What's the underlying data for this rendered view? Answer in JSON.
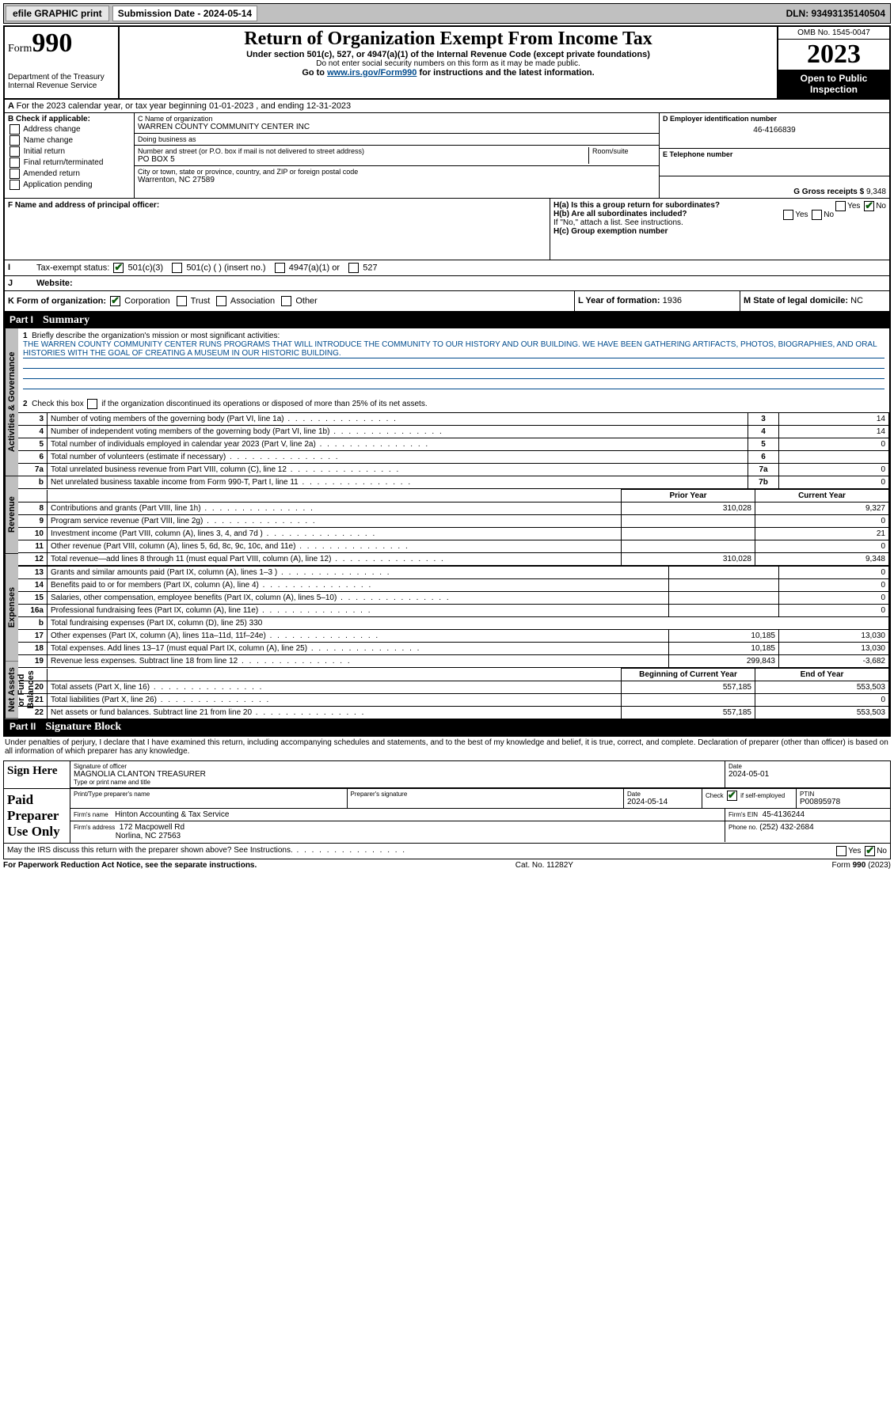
{
  "topbar": {
    "efile_label": "efile GRAPHIC print",
    "submission_label": "Submission Date - 2024-05-14",
    "dln": "DLN: 93493135140504"
  },
  "header": {
    "form_word": "Form",
    "form_number": "990",
    "dept": "Department of the Treasury",
    "irs": "Internal Revenue Service",
    "title": "Return of Organization Exempt From Income Tax",
    "subtitle": "Under section 501(c), 527, or 4947(a)(1) of the Internal Revenue Code (except private foundations)",
    "ssn_note": "Do not enter social security numbers on this form as it may be made public.",
    "goto": "Go to www.irs.gov/Form990 for instructions and the latest information.",
    "omb": "OMB No. 1545-0047",
    "year": "2023",
    "inspect": "Open to Public Inspection"
  },
  "line_a": "For the 2023 calendar year, or tax year beginning 01-01-2023   , and ending 12-31-2023",
  "section_b": {
    "label": "B Check if applicable:",
    "opts": [
      "Address change",
      "Name change",
      "Initial return",
      "Final return/terminated",
      "Amended return",
      "Application pending"
    ]
  },
  "section_c": {
    "name_label": "C Name of organization",
    "name": "WARREN COUNTY COMMUNITY CENTER INC",
    "dba_label": "Doing business as",
    "dba": "",
    "street_label": "Number and street (or P.O. box if mail is not delivered to street address)",
    "room_label": "Room/suite",
    "street": "PO BOX 5",
    "city_label": "City or town, state or province, country, and ZIP or foreign postal code",
    "city": "Warrenton, NC  27589"
  },
  "section_d": {
    "label": "D Employer identification number",
    "value": "46-4166839"
  },
  "section_e": {
    "label": "E Telephone number",
    "value": ""
  },
  "section_g": {
    "label": "G Gross receipts $",
    "value": "9,348"
  },
  "section_f": {
    "label": "F  Name and address of principal officer:",
    "value": ""
  },
  "section_h": {
    "a_label": "H(a)  Is this a group return for subordinates?",
    "a_yes": "Yes",
    "a_no": "No",
    "b_label": "H(b)  Are all subordinates included?",
    "b_note": "If \"No,\" attach a list. See instructions.",
    "c_label": "H(c)  Group exemption number"
  },
  "section_i": {
    "label": "Tax-exempt status:",
    "opts": [
      "501(c)(3)",
      "501(c) (  ) (insert no.)",
      "4947(a)(1) or",
      "527"
    ]
  },
  "section_j": {
    "label": "Website:",
    "value": ""
  },
  "section_k": {
    "label": "K Form of organization:",
    "opts": [
      "Corporation",
      "Trust",
      "Association",
      "Other"
    ]
  },
  "section_l": {
    "label": "L Year of formation:",
    "value": "1936"
  },
  "section_m": {
    "label": "M State of legal domicile:",
    "value": "NC"
  },
  "part1": {
    "header_part": "Part I",
    "header_title": "Summary",
    "tab_gov": "Activities & Governance",
    "tab_rev": "Revenue",
    "tab_exp": "Expenses",
    "tab_net": "Net Assets or Fund Balances",
    "line1_label": "Briefly describe the organization's mission or most significant activities:",
    "mission": "THE WARREN COUNTY COMMUNITY CENTER RUNS PROGRAMS THAT WILL INTRODUCE THE COMMUNITY TO OUR HISTORY AND OUR BUILDING. WE HAVE BEEN GATHERING ARTIFACTS, PHOTOS, BIOGRAPHIES, AND ORAL HISTORIES WITH THE GOAL OF CREATING A MUSEUM IN OUR HISTORIC BUILDING.",
    "line2": "Check this box       if the organization discontinued its operations or disposed of more than 25% of its net assets.",
    "rows_gov": [
      {
        "n": "3",
        "d": "Number of voting members of the governing body (Part VI, line 1a)",
        "b": "3",
        "v": "14"
      },
      {
        "n": "4",
        "d": "Number of independent voting members of the governing body (Part VI, line 1b)",
        "b": "4",
        "v": "14"
      },
      {
        "n": "5",
        "d": "Total number of individuals employed in calendar year 2023 (Part V, line 2a)",
        "b": "5",
        "v": "0"
      },
      {
        "n": "6",
        "d": "Total number of volunteers (estimate if necessary)",
        "b": "6",
        "v": ""
      },
      {
        "n": "7a",
        "d": "Total unrelated business revenue from Part VIII, column (C), line 12",
        "b": "7a",
        "v": "0"
      },
      {
        "n": "b",
        "d": "Net unrelated business taxable income from Form 990-T, Part I, line 11",
        "b": "7b",
        "v": "0"
      }
    ],
    "hdr_prior": "Prior Year",
    "hdr_current": "Current Year",
    "rows_rev": [
      {
        "n": "8",
        "d": "Contributions and grants (Part VIII, line 1h)",
        "p": "310,028",
        "c": "9,327"
      },
      {
        "n": "9",
        "d": "Program service revenue (Part VIII, line 2g)",
        "p": "",
        "c": "0"
      },
      {
        "n": "10",
        "d": "Investment income (Part VIII, column (A), lines 3, 4, and 7d )",
        "p": "",
        "c": "21"
      },
      {
        "n": "11",
        "d": "Other revenue (Part VIII, column (A), lines 5, 6d, 8c, 9c, 10c, and 11e)",
        "p": "",
        "c": "0"
      },
      {
        "n": "12",
        "d": "Total revenue—add lines 8 through 11 (must equal Part VIII, column (A), line 12)",
        "p": "310,028",
        "c": "9,348"
      }
    ],
    "rows_exp": [
      {
        "n": "13",
        "d": "Grants and similar amounts paid (Part IX, column (A), lines 1–3 )",
        "p": "",
        "c": "0"
      },
      {
        "n": "14",
        "d": "Benefits paid to or for members (Part IX, column (A), line 4)",
        "p": "",
        "c": "0"
      },
      {
        "n": "15",
        "d": "Salaries, other compensation, employee benefits (Part IX, column (A), lines 5–10)",
        "p": "",
        "c": "0"
      },
      {
        "n": "16a",
        "d": "Professional fundraising fees (Part IX, column (A), line 11e)",
        "p": "",
        "c": "0"
      },
      {
        "n": "b",
        "d": "Total fundraising expenses (Part IX, column (D), line 25) 330",
        "p": null,
        "c": null
      },
      {
        "n": "17",
        "d": "Other expenses (Part IX, column (A), lines 11a–11d, 11f–24e)",
        "p": "10,185",
        "c": "13,030"
      },
      {
        "n": "18",
        "d": "Total expenses. Add lines 13–17 (must equal Part IX, column (A), line 25)",
        "p": "10,185",
        "c": "13,030"
      },
      {
        "n": "19",
        "d": "Revenue less expenses. Subtract line 18 from line 12",
        "p": "299,843",
        "c": "-3,682"
      }
    ],
    "hdr_begin": "Beginning of Current Year",
    "hdr_end": "End of Year",
    "rows_net": [
      {
        "n": "20",
        "d": "Total assets (Part X, line 16)",
        "p": "557,185",
        "c": "553,503"
      },
      {
        "n": "21",
        "d": "Total liabilities (Part X, line 26)",
        "p": "",
        "c": "0"
      },
      {
        "n": "22",
        "d": "Net assets or fund balances. Subtract line 21 from line 20",
        "p": "557,185",
        "c": "553,503"
      }
    ]
  },
  "part2": {
    "header_part": "Part II",
    "header_title": "Signature Block",
    "perjury": "Under penalties of perjury, I declare that I have examined this return, including accompanying schedules and statements, and to the best of my knowledge and belief, it is true, correct, and complete. Declaration of preparer (other than officer) is based on all information of which preparer has any knowledge."
  },
  "sign": {
    "label": "Sign Here",
    "sig_label": "Signature of officer",
    "date_label": "Date",
    "date": "2024-05-01",
    "name": "MAGNOLIA CLANTON  TREASURER",
    "type_label": "Type or print name and title"
  },
  "preparer": {
    "label": "Paid Preparer Use Only",
    "print_label": "Print/Type preparer's name",
    "sig_label": "Preparer's signature",
    "date_label": "Date",
    "date": "2024-05-14",
    "check_label": "Check         if self-employed",
    "ptin_label": "PTIN",
    "ptin": "P00895978",
    "firm_name_label": "Firm's name",
    "firm_name": "Hinton Accounting & Tax Service",
    "firm_ein_label": "Firm's EIN",
    "firm_ein": "45-4136244",
    "firm_addr_label": "Firm's address",
    "firm_addr1": "172 Macpowell Rd",
    "firm_addr2": "Norlina, NC  27563",
    "phone_label": "Phone no.",
    "phone": "(252) 432-2684"
  },
  "footer": {
    "discuss": "May the IRS discuss this return with the preparer shown above? See Instructions.",
    "yes": "Yes",
    "no": "No",
    "paperwork": "For Paperwork Reduction Act Notice, see the separate instructions.",
    "cat": "Cat. No. 11282Y",
    "form": "Form 990 (2023)"
  },
  "colors": {
    "link": "#004b8d",
    "check": "#0b5c0b",
    "grey": "#c0c0c0"
  }
}
